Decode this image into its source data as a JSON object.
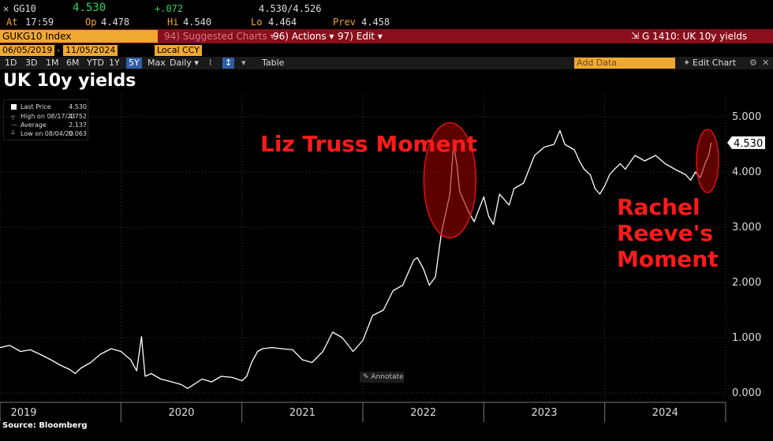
{
  "header": {
    "close_glyph": "✕",
    "ticker": "GG10",
    "last": "4.530",
    "change": "+.072",
    "bid_ask": "4.530/4.526",
    "time_label": "At",
    "time": "17:59",
    "open_label": "Op",
    "open": "4.478",
    "high_label": "Hi",
    "high": "4.540",
    "low_label": "Lo",
    "low": "4.464",
    "prev_label": "Prev",
    "prev": "4.458"
  },
  "toolbar": {
    "security": "GUKG10 Index",
    "suggested": "94) Suggested Charts ▾",
    "actions": "96) Actions ▾",
    "edit": "97) Edit ▾",
    "chart_id": "G 1410: UK 10y yields"
  },
  "range": {
    "start": "06/05/2019",
    "end": "11/05/2024",
    "currency": "Local CCY"
  },
  "periods": [
    "1D",
    "3D",
    "1M",
    "6M",
    "YTD",
    "1Y",
    "5Y",
    "Max"
  ],
  "selected_period": "5Y",
  "frequency": "Daily ▾",
  "table_label": "Table",
  "add_data_placeholder": "Add Data",
  "edit_chart": "Edit Chart",
  "legend": {
    "last_label": "Last Price",
    "last_value": "4.530",
    "high_label": "High on 08/17/23",
    "high_value": "4.752",
    "avg_label": "Average",
    "avg_value": "2.137",
    "low_label": "Low on 08/04/20",
    "low_value": "0.063"
  },
  "annotate_label": "Annotate",
  "source": "Source: Bloomberg",
  "colors": {
    "annotation": "#ff1a1a",
    "line": "#ffffff",
    "security_box": "#f0a830",
    "toolbar": "#8a0f1c"
  },
  "chart_data": {
    "type": "line",
    "title": "UK 10y yields",
    "xlabel": "",
    "ylabel": "",
    "x_tick_labels": [
      "2019",
      "2020",
      "2021",
      "2022",
      "2023",
      "2024"
    ],
    "y_ticks": [
      0.0,
      1.0,
      2.0,
      3.0,
      4.0,
      5.0
    ],
    "y_tick_labels": [
      "0.000",
      "1.000",
      "2.000",
      "3.000",
      "4.000",
      "5.000"
    ],
    "ylim": [
      -0.1,
      5.4
    ],
    "xlim": [
      2019.0,
      2025.0
    ],
    "grid": true,
    "last_value_label": "4.530",
    "series": [
      {
        "x": [
          2019.0,
          2019.08,
          2019.17,
          2019.25,
          2019.33,
          2019.42,
          2019.5,
          2019.58,
          2019.62,
          2019.67,
          2019.75,
          2019.83,
          2019.92,
          2020.0,
          2020.08,
          2020.13,
          2020.17,
          2020.2,
          2020.25,
          2020.33,
          2020.42,
          2020.5,
          2020.55,
          2020.58,
          2020.67,
          2020.75,
          2020.83,
          2020.92,
          2021.0,
          2021.04,
          2021.08,
          2021.13,
          2021.17,
          2021.25,
          2021.33,
          2021.42,
          2021.5,
          2021.58,
          2021.67,
          2021.75,
          2021.83,
          2021.92,
          2022.0,
          2022.08,
          2022.17,
          2022.25,
          2022.33,
          2022.42,
          2022.45,
          2022.5,
          2022.55,
          2022.6,
          2022.65,
          2022.7,
          2022.72,
          2022.75,
          2022.78,
          2022.8,
          2022.83,
          2022.87,
          2022.92,
          2023.0,
          2023.04,
          2023.08,
          2023.13,
          2023.17,
          2023.21,
          2023.25,
          2023.33,
          2023.42,
          2023.5,
          2023.58,
          2023.63,
          2023.67,
          2023.75,
          2023.79,
          2023.83,
          2023.88,
          2023.92,
          2023.96,
          2024.0,
          2024.04,
          2024.08,
          2024.13,
          2024.17,
          2024.25,
          2024.33,
          2024.42,
          2024.5,
          2024.58,
          2024.67,
          2024.71,
          2024.75,
          2024.79,
          2024.83,
          2024.86,
          2024.88
        ],
        "values": [
          0.82,
          0.86,
          0.75,
          0.78,
          0.7,
          0.6,
          0.5,
          0.42,
          0.35,
          0.45,
          0.55,
          0.7,
          0.8,
          0.75,
          0.6,
          0.4,
          1.02,
          0.3,
          0.35,
          0.25,
          0.2,
          0.15,
          0.08,
          0.12,
          0.25,
          0.2,
          0.3,
          0.28,
          0.22,
          0.3,
          0.55,
          0.75,
          0.8,
          0.82,
          0.8,
          0.78,
          0.6,
          0.55,
          0.75,
          1.1,
          1.0,
          0.75,
          0.95,
          1.4,
          1.5,
          1.85,
          1.95,
          2.4,
          2.45,
          2.25,
          1.95,
          2.1,
          2.9,
          3.4,
          3.6,
          4.5,
          4.1,
          3.65,
          3.5,
          3.3,
          3.1,
          3.55,
          3.2,
          3.05,
          3.6,
          3.5,
          3.4,
          3.7,
          3.8,
          4.3,
          4.45,
          4.5,
          4.75,
          4.5,
          4.4,
          4.2,
          4.05,
          3.95,
          3.7,
          3.6,
          3.75,
          3.95,
          4.05,
          4.15,
          4.05,
          4.3,
          4.2,
          4.3,
          4.15,
          4.05,
          3.95,
          3.85,
          4.0,
          3.9,
          4.15,
          4.3,
          4.53
        ]
      }
    ],
    "annotations": [
      {
        "text": "Liz Truss Moment",
        "at_x": 2022.72,
        "at_y": 3.9
      },
      {
        "text": "Rachel Reeve's Moment",
        "at_x": 2024.85,
        "at_y": 4.2
      }
    ]
  }
}
